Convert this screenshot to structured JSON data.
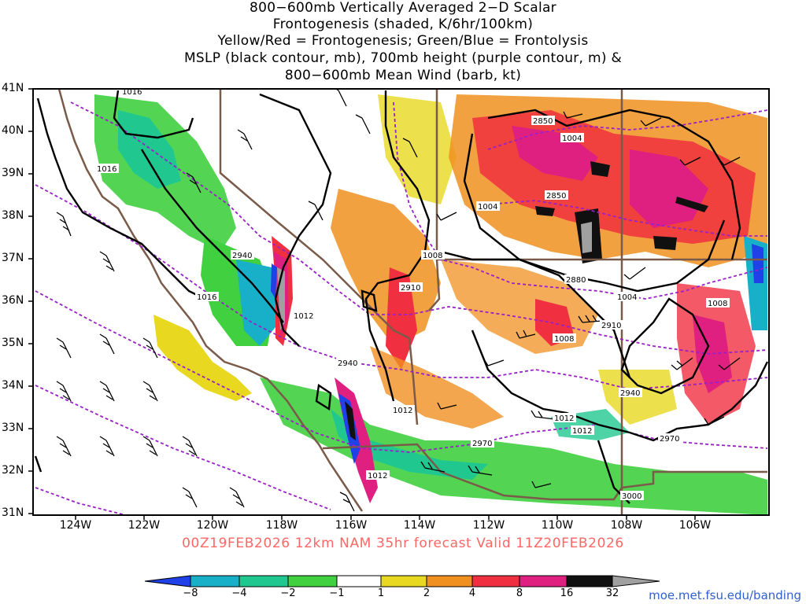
{
  "header": {
    "title_lines": [
      "800−600mb Vertically Averaged 2−D Scalar",
      "Frontogenesis (shaded, K/6hr/100km)",
      "Yellow/Red = Frontogenesis;  Green/Blue = Frontolysis",
      "MSLP (black contour, mb), 700mb height (purple contour, m) &",
      "800−600mb Mean Wind (barb, kt)"
    ]
  },
  "axes": {
    "lat_labels": [
      "41N",
      "40N",
      "39N",
      "38N",
      "37N",
      "36N",
      "35N",
      "34N",
      "33N",
      "32N",
      "31N"
    ],
    "lon_labels": [
      "124W",
      "122W",
      "120W",
      "118W",
      "116W",
      "114W",
      "112W",
      "110W",
      "108W",
      "106W"
    ]
  },
  "valid_line": "00Z19FEB2026 12km NAM 35hr forecast Valid 11Z20FEB2026",
  "colorbar": {
    "ticks": [
      "−8",
      "−4",
      "−2",
      "−1",
      "1",
      "2",
      "4",
      "8",
      "16",
      "32"
    ],
    "colors": [
      "#2040e8",
      "#18b0c8",
      "#20c890",
      "#40d040",
      "#ffffff",
      "#e8d820",
      "#f09020",
      "#f03040",
      "#e02080",
      "#101010",
      "#a0a0a0"
    ]
  },
  "contour_labels": {
    "mslp": [
      "1016",
      "1016",
      "1016",
      "1012",
      "1012",
      "1012",
      "1012",
      "1012",
      "1008",
      "1008",
      "1008",
      "1004",
      "1004",
      "1004"
    ],
    "height700": [
      "2850",
      "2850",
      "2880",
      "2910",
      "2910",
      "2940",
      "2940",
      "2940",
      "2970",
      "2970",
      "3000"
    ]
  },
  "credit": "moe.met.fsu.edu/banding"
}
